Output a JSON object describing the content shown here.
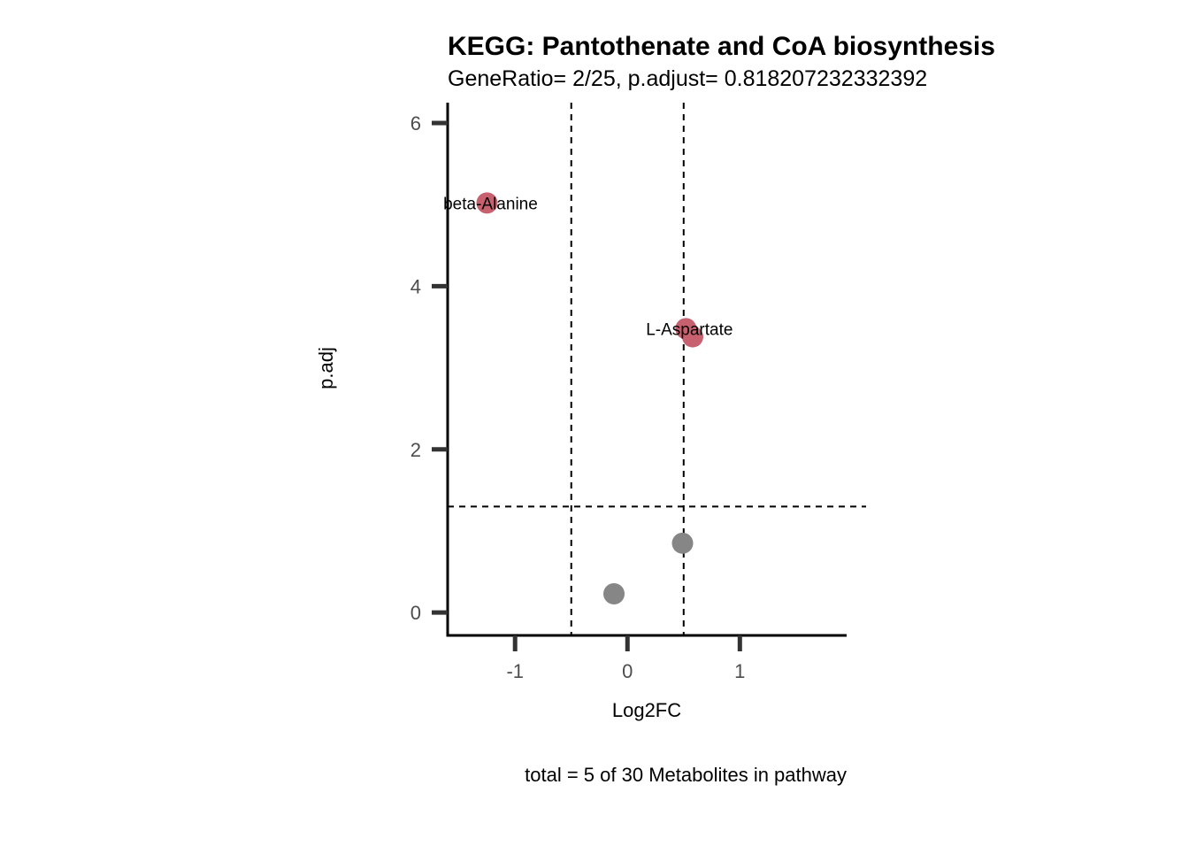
{
  "chart_data": {
    "type": "scatter",
    "title": "KEGG: Pantothenate and CoA biosynthesis",
    "subtitle": "GeneRatio= 2/25, p.adjust= 0.818207232332392",
    "xlabel": "Log2FC",
    "ylabel": "p.adj",
    "caption": "total = 5 of 30 Metabolites in pathway",
    "xlim": [
      -1.6,
      1.95
    ],
    "ylim": [
      -0.28,
      6.25
    ],
    "x_ticks": [
      -1,
      0,
      1
    ],
    "x_tick_labels": [
      "-1",
      "0",
      "1"
    ],
    "y_ticks": [
      0,
      2,
      4,
      6
    ],
    "y_tick_labels": [
      "0",
      "2",
      "4",
      "6"
    ],
    "grid": false,
    "legend": "none",
    "thresholds": {
      "vertical": [
        -0.5,
        0.5
      ],
      "horizontal": 1.3
    },
    "colors": {
      "significant": "#c8616f",
      "not_significant": "#868686",
      "axis": "#000000",
      "ticks": "#333333",
      "threshold_line": "#000000"
    },
    "points": [
      {
        "x": -1.25,
        "y": 5.02,
        "status": "significant",
        "label": "beta-Alanine"
      },
      {
        "x": 0.52,
        "y": 3.48,
        "status": "significant",
        "label": "L-Aspartate"
      },
      {
        "x": 0.58,
        "y": 3.38,
        "status": "significant",
        "label": ""
      },
      {
        "x": 0.49,
        "y": 0.85,
        "status": "not_significant",
        "label": ""
      },
      {
        "x": -0.12,
        "y": 0.23,
        "status": "not_significant",
        "label": ""
      }
    ]
  }
}
